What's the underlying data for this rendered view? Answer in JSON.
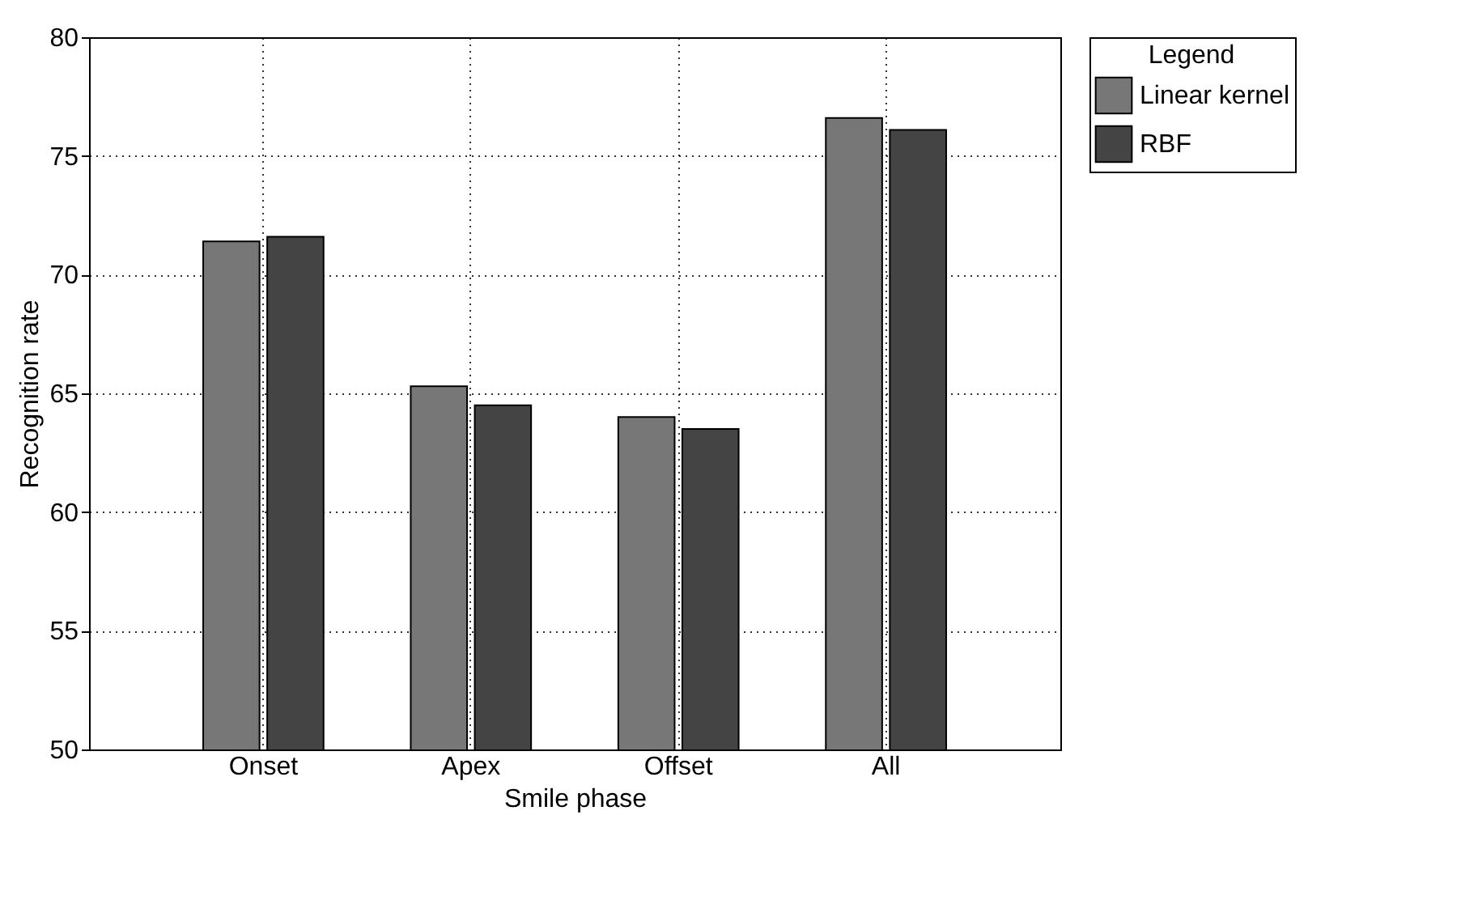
{
  "chart_data": {
    "type": "bar",
    "xlabel": "Smile phase",
    "ylabel": "Recognition rate",
    "legend_title": "Legend",
    "categories": [
      "Onset",
      "Apex",
      "Offset",
      "All"
    ],
    "series": [
      {
        "name": "Linear kernel",
        "color": "#777777",
        "values": [
          71.4,
          65.3,
          64.0,
          76.6
        ]
      },
      {
        "name": "RBF",
        "color": "#444444",
        "values": [
          71.6,
          64.5,
          63.5,
          76.1
        ]
      }
    ],
    "ylim": [
      50,
      80
    ],
    "yticks": [
      50,
      55,
      60,
      65,
      70,
      75,
      80
    ],
    "grid": true,
    "legend": "top right"
  }
}
